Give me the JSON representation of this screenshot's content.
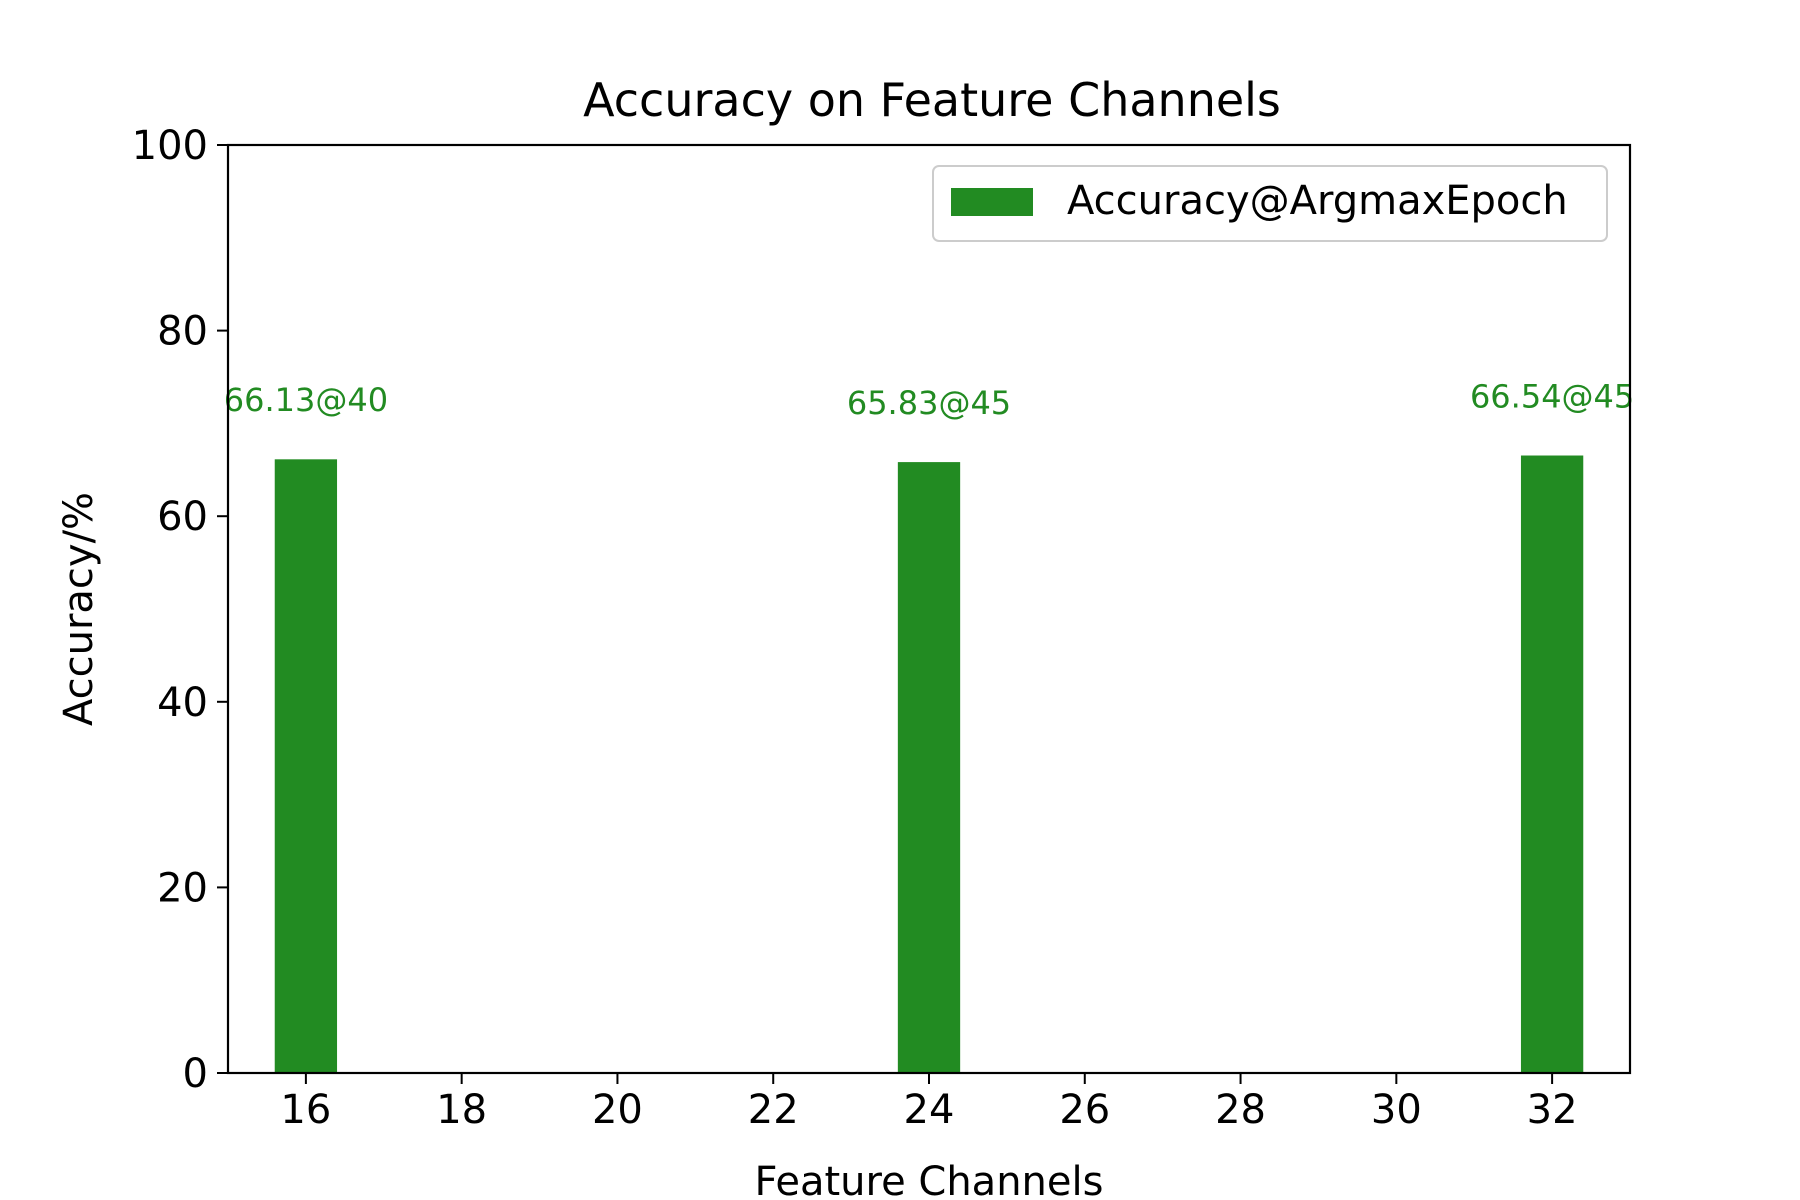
{
  "chart_data": {
    "type": "bar",
    "title": "Accuracy on Feature Channels",
    "xlabel": "Feature Channels",
    "ylabel": "Accuracy/%",
    "xlim": [
      15,
      33
    ],
    "ylim": [
      0,
      100
    ],
    "x_ticks": [
      16,
      18,
      20,
      22,
      24,
      26,
      28,
      30,
      32
    ],
    "y_ticks": [
      0,
      20,
      40,
      60,
      80,
      100
    ],
    "x": [
      16,
      24,
      32
    ],
    "series": [
      {
        "name": "Accuracy@ArgmaxEpoch",
        "color": "#228b22",
        "values": [
          66.13,
          65.83,
          66.54
        ],
        "data_labels": [
          "66.13@40",
          "65.83@45",
          "66.54@45"
        ]
      }
    ],
    "grid": false,
    "legend_position": "top-right"
  }
}
